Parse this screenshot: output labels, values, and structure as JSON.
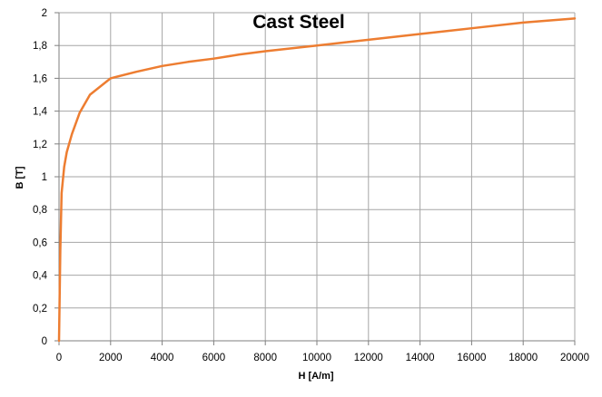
{
  "chart_data": {
    "type": "line",
    "title": "Cast Steel",
    "xlabel": "H [A/m]",
    "ylabel": "B [T]",
    "xlim": [
      0,
      20000
    ],
    "ylim": [
      0,
      2
    ],
    "x_ticks": [
      "0",
      "2000",
      "4000",
      "6000",
      "8000",
      "10000",
      "12000",
      "14000",
      "16000",
      "18000",
      "20000"
    ],
    "y_ticks": [
      "0",
      "0,2",
      "0,4",
      "0,6",
      "0,8",
      "1",
      "1,2",
      "1,4",
      "1,6",
      "1,8",
      "2"
    ],
    "grid": true,
    "legend": "none",
    "series": [
      {
        "color": "#ED7D31",
        "x": [
          0,
          50,
          100,
          150,
          200,
          300,
          500,
          800,
          1200,
          2000,
          3000,
          4000,
          5000,
          6000,
          7000,
          8000,
          10000,
          12000,
          14000,
          16000,
          18000,
          20000
        ],
        "y": [
          0,
          0.55,
          0.9,
          0.98,
          1.06,
          1.15,
          1.26,
          1.39,
          1.5,
          1.6,
          1.64,
          1.675,
          1.7,
          1.72,
          1.745,
          1.765,
          1.8,
          1.835,
          1.87,
          1.905,
          1.94,
          1.965
        ]
      }
    ]
  }
}
